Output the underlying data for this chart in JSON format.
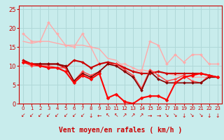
{
  "title": "Vent moyen/en rafales ( km/h )",
  "xlim": [
    -0.5,
    23.5
  ],
  "ylim": [
    0,
    26
  ],
  "yticks": [
    0,
    5,
    10,
    15,
    20,
    25
  ],
  "xticks": [
    0,
    1,
    2,
    3,
    4,
    5,
    6,
    7,
    8,
    9,
    10,
    11,
    12,
    13,
    14,
    15,
    16,
    17,
    18,
    19,
    20,
    21,
    22,
    23
  ],
  "bg_color": "#c8ecec",
  "grid_color": "#b0d8d8",
  "lines": [
    {
      "x": [
        0,
        1,
        2,
        3,
        4,
        5,
        6,
        7,
        8,
        9,
        10,
        11,
        12,
        13,
        14,
        15,
        16,
        17,
        18,
        19,
        20,
        21,
        22,
        23
      ],
      "y": [
        18.5,
        16.5,
        16.5,
        21.5,
        18.5,
        15.5,
        15.0,
        18.5,
        15.0,
        10.5,
        11.0,
        10.5,
        10.5,
        9.5,
        8.5,
        16.5,
        15.5,
        10.5,
        13.0,
        11.0,
        13.0,
        13.0,
        10.5,
        10.5
      ],
      "color": "#ffaaaa",
      "lw": 1.0,
      "marker": "D",
      "ms": 2.0
    },
    {
      "x": [
        0,
        1,
        2,
        3,
        4,
        5,
        6,
        7,
        8,
        9,
        10,
        11,
        12,
        13,
        14,
        15,
        16,
        17,
        18,
        19,
        20,
        21,
        22,
        23
      ],
      "y": [
        16.5,
        16.0,
        16.5,
        16.5,
        16.0,
        15.5,
        15.5,
        15.5,
        15.0,
        14.5,
        12.0,
        11.5,
        9.5,
        8.5,
        9.0,
        8.5,
        8.5,
        8.0,
        7.5,
        7.5,
        7.0,
        7.0,
        7.0,
        7.0
      ],
      "color": "#ffaaaa",
      "lw": 1.0,
      "marker": null,
      "ms": 0
    },
    {
      "x": [
        0,
        1,
        2,
        3,
        4,
        5,
        6,
        7,
        8,
        9,
        10,
        11,
        12,
        13,
        14,
        15,
        16,
        17,
        18,
        19,
        20,
        21,
        22,
        23
      ],
      "y": [
        11.5,
        10.5,
        10.5,
        10.5,
        10.5,
        9.5,
        11.5,
        11.0,
        9.5,
        10.5,
        11.0,
        10.5,
        9.5,
        8.5,
        8.0,
        8.0,
        8.5,
        8.0,
        8.0,
        8.0,
        8.0,
        8.0,
        7.5,
        7.0
      ],
      "color": "#cc0000",
      "lw": 1.5,
      "marker": "D",
      "ms": 2.0
    },
    {
      "x": [
        0,
        1,
        2,
        3,
        4,
        5,
        6,
        7,
        8,
        9,
        10,
        11,
        12,
        13,
        14,
        15,
        16,
        17,
        18,
        19,
        20,
        21,
        22,
        23
      ],
      "y": [
        11.0,
        10.0,
        10.0,
        10.0,
        9.5,
        9.5,
        6.0,
        8.5,
        7.5,
        8.5,
        10.5,
        10.5,
        9.0,
        7.5,
        4.0,
        9.0,
        7.5,
        6.0,
        6.5,
        7.5,
        6.0,
        5.5,
        7.5,
        7.0
      ],
      "color": "#ff4444",
      "lw": 1.0,
      "marker": "D",
      "ms": 2.0
    },
    {
      "x": [
        0,
        1,
        2,
        3,
        4,
        5,
        6,
        7,
        8,
        9,
        10,
        11,
        12,
        13,
        14,
        15,
        16,
        17,
        18,
        19,
        20,
        21,
        22,
        23
      ],
      "y": [
        11.0,
        10.5,
        10.5,
        10.5,
        10.5,
        10.0,
        6.0,
        8.0,
        7.0,
        8.5,
        10.5,
        10.0,
        8.5,
        7.0,
        3.5,
        8.5,
        6.5,
        5.5,
        5.5,
        5.5,
        5.5,
        5.5,
        7.0,
        7.0
      ],
      "color": "#880000",
      "lw": 1.2,
      "marker": "D",
      "ms": 2.0
    },
    {
      "x": [
        0,
        1,
        2,
        3,
        4,
        5,
        6,
        7,
        8,
        9,
        10,
        11,
        12,
        13,
        14,
        15,
        16,
        17,
        18,
        19,
        20,
        21,
        22,
        23
      ],
      "y": [
        11.0,
        10.5,
        10.0,
        9.5,
        9.5,
        8.5,
        5.5,
        7.5,
        6.5,
        8.0,
        1.5,
        2.5,
        0.5,
        0.0,
        1.5,
        2.0,
        2.0,
        1.0,
        5.5,
        7.0,
        7.5,
        8.0,
        7.5,
        7.0
      ],
      "color": "#ff0000",
      "lw": 1.5,
      "marker": "D",
      "ms": 2.5
    }
  ],
  "arrow_chars": [
    "↙",
    "↙",
    "↙",
    "↙",
    "↙",
    "↙",
    "↙",
    "↙",
    "↓",
    "←",
    "↖",
    "↖",
    "↗",
    "↗",
    "↗",
    "→",
    "→",
    "↘",
    "↘",
    "↓",
    "↘",
    "↘",
    "↓",
    "↓"
  ],
  "arrow_color": "#cc0000",
  "xlabel_color": "#cc0000",
  "tick_color": "#cc0000",
  "spine_color": "#cc0000"
}
